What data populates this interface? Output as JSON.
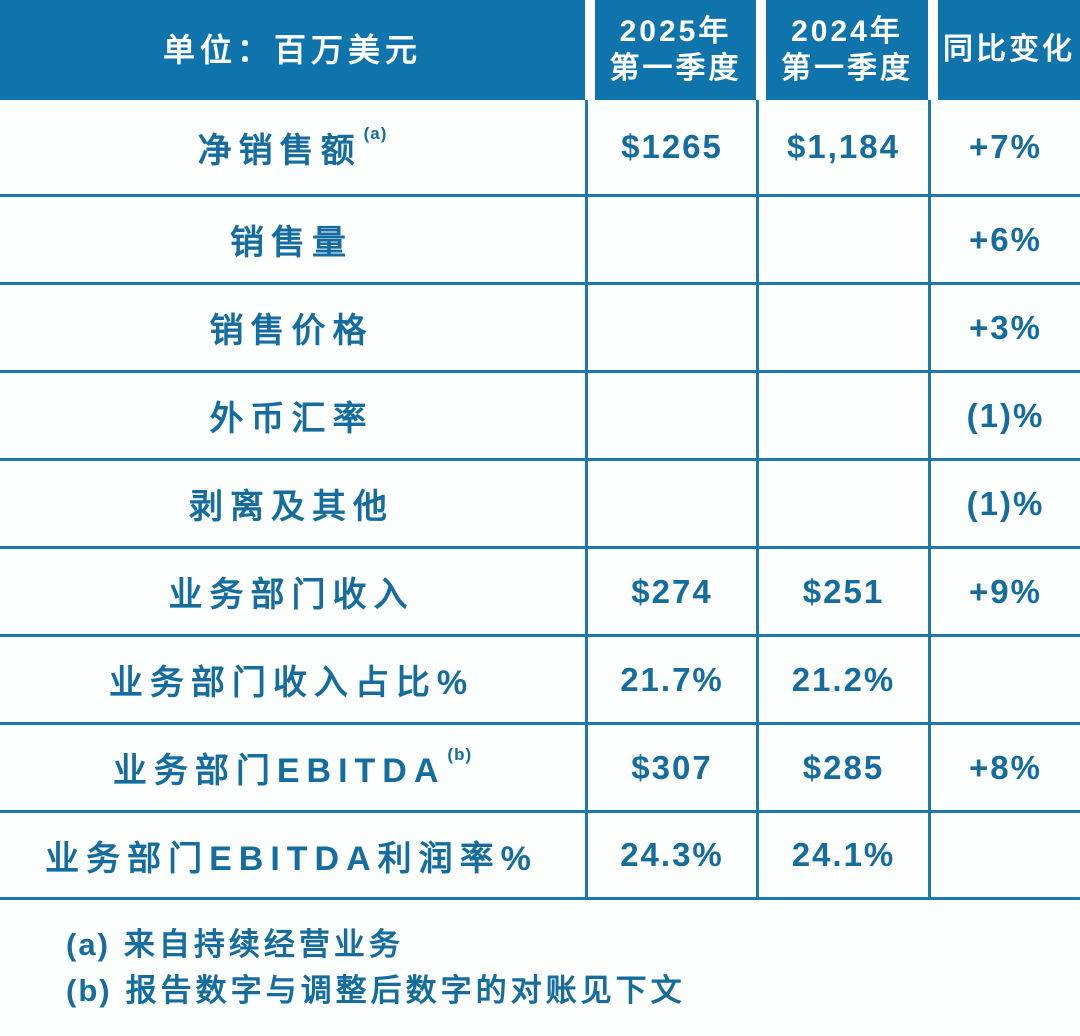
{
  "colors": {
    "header_bg": "#0f74ab",
    "grid_line": "#1b79ab",
    "text_blue": "#146d9e",
    "header_text": "#ffffff",
    "background": "#fdfefe"
  },
  "table": {
    "unit_label": "单位：百万美元",
    "columns": [
      {
        "line1": "2025年",
        "line2": "第一季度"
      },
      {
        "line1": "2024年",
        "line2": "第一季度"
      },
      {
        "line1": "同比变化",
        "line2": ""
      }
    ],
    "rows": [
      {
        "label": "净销售额",
        "sup": "(a)",
        "q1_2025": "$1265",
        "q1_2024": "$1,184",
        "yoy": "+7%"
      },
      {
        "label": "销售量",
        "sup": "",
        "q1_2025": "",
        "q1_2024": "",
        "yoy": "+6%"
      },
      {
        "label": "销售价格",
        "sup": "",
        "q1_2025": "",
        "q1_2024": "",
        "yoy": "+3%"
      },
      {
        "label": "外币汇率",
        "sup": "",
        "q1_2025": "",
        "q1_2024": "",
        "yoy": "(1)%"
      },
      {
        "label": "剥离及其他",
        "sup": "",
        "q1_2025": "",
        "q1_2024": "",
        "yoy": "(1)%"
      },
      {
        "label": "业务部门收入",
        "sup": "",
        "q1_2025": "$274",
        "q1_2024": "$251",
        "yoy": "+9%"
      },
      {
        "label": "业务部门收入占比%",
        "sup": "",
        "q1_2025": "21.7%",
        "q1_2024": "21.2%",
        "yoy": ""
      },
      {
        "label": "业务部门EBITDA",
        "sup": "(b)",
        "q1_2025": "$307",
        "q1_2024": "$285",
        "yoy": "+8%"
      },
      {
        "label": "业务部门EBITDA利润率%",
        "sup": "",
        "q1_2025": "24.3%",
        "q1_2024": "24.1%",
        "yoy": ""
      }
    ]
  },
  "footnotes": [
    {
      "marker": "(a)",
      "text": "来自持续经营业务"
    },
    {
      "marker": "(b)",
      "text": "报告数字与调整后数字的对账见下文"
    }
  ],
  "chart_data": {
    "type": "table",
    "title": "单位：百万美元",
    "columns": [
      "单位：百万美元",
      "2025年第一季度",
      "2024年第一季度",
      "同比变化"
    ],
    "rows": [
      [
        "净销售额 (a)",
        "$1265",
        "$1,184",
        "+7%"
      ],
      [
        "销售量",
        "",
        "",
        "+6%"
      ],
      [
        "销售价格",
        "",
        "",
        "+3%"
      ],
      [
        "外币汇率",
        "",
        "",
        "(1)%"
      ],
      [
        "剥离及其他",
        "",
        "",
        "(1)%"
      ],
      [
        "业务部门收入",
        "$274",
        "$251",
        "+9%"
      ],
      [
        "业务部门收入占比%",
        "21.7%",
        "21.2%",
        ""
      ],
      [
        "业务部门EBITDA (b)",
        "$307",
        "$285",
        "+8%"
      ],
      [
        "业务部门EBITDA利润率%",
        "24.3%",
        "24.1%",
        ""
      ]
    ],
    "footnotes": [
      "(a) 来自持续经营业务",
      "(b) 报告数字与调整后数字的对账见下文"
    ]
  }
}
